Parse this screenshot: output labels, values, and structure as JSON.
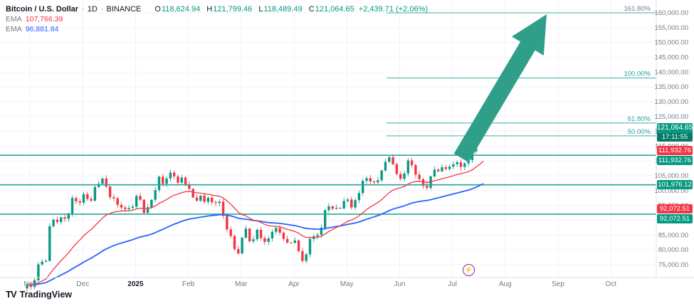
{
  "header": {
    "symbol": "Bitcoin / U.S. Dollar",
    "sep": "·",
    "timeframe": "1D",
    "exchange": "BINANCE",
    "ohlc": {
      "o_label": "O",
      "o": "118,624.94",
      "h_label": "H",
      "h": "121,799.46",
      "l_label": "L",
      "l": "118,489.49",
      "c_label": "C",
      "c": "121,064.65",
      "change": "+2,439.71 (+2.06%)"
    },
    "indicators": [
      {
        "label": "EMA",
        "value": "107,766.39",
        "color": "#f23645"
      },
      {
        "label": "EMA",
        "value": "96,881.84",
        "color": "#2962ff"
      }
    ]
  },
  "price_axis": {
    "labels": [
      "160,000.00",
      "155,000.00",
      "150,000.00",
      "145,000.00",
      "140,000.00",
      "135,000.00",
      "130,000.00",
      "125,000.00",
      "120,000.00",
      "115,000.00",
      "110,000.00",
      "105,000.00",
      "100,000.00",
      "95,000.00",
      "90,000.00",
      "85,000.00",
      "80,000.00",
      "75,000.00"
    ]
  },
  "time_axis": {
    "labels": [
      "Nov",
      "Dec",
      "2025",
      "Feb",
      "Mar",
      "Apr",
      "May",
      "Jun",
      "Jul",
      "Aug",
      "Sep",
      "Oct"
    ]
  },
  "current_price": {
    "value": "121,064.65",
    "countdown": "17:11:55",
    "raw": 121064.65,
    "color": "#089981"
  },
  "sr_levels": [
    {
      "display": "111,932.76",
      "price": 111932.76,
      "color": "#26a69a",
      "badges": [
        "red",
        "green"
      ]
    },
    {
      "display": "101,976.12",
      "price": 101976.12,
      "color": "#26a69a",
      "badges": [
        "green"
      ]
    },
    {
      "display": "92,072.51",
      "price": 92072.51,
      "color": "#26a69a",
      "badges": [
        "red",
        "green"
      ]
    }
  ],
  "fib_levels": [
    {
      "pct": "161.80%",
      "price": 160000,
      "line_color": "#26a69a",
      "label_color": "#787b86"
    },
    {
      "pct": "100.00%",
      "price": 138000,
      "line_color": "#26a69a",
      "label_color": "#26a69a"
    },
    {
      "pct": "61.80%",
      "price": 122800,
      "line_color": "#26a69a",
      "label_color": "#26a69a"
    },
    {
      "pct": "50.00%",
      "price": 118500,
      "line_color": "#26a69a",
      "label_color": "#26a69a"
    }
  ],
  "annotations": {
    "arrow": {
      "type": "arrow-up-right",
      "color": "#2f9f8a"
    }
  },
  "event_icon": {
    "glyph": "⚡"
  },
  "logo": {
    "mark": "TV",
    "text": "TradingView"
  },
  "chart_data": {
    "type": "candlestick",
    "title": "Bitcoin / U.S. Dollar",
    "interval": "1D",
    "exchange": "BINANCE",
    "ylim": [
      75000,
      160000
    ],
    "x_tick_labels": [
      "Nov",
      "Dec",
      "2025",
      "Feb",
      "Mar",
      "Apr",
      "May",
      "Jun",
      "Jul",
      "Aug",
      "Sep",
      "Oct"
    ],
    "last_candle": {
      "open": 118624.94,
      "high": 121799.46,
      "low": 118489.49,
      "close": 121064.65
    },
    "up_color": "#089981",
    "down_color": "#f23645",
    "first_open": 67000,
    "closes": [
      68200,
      67500,
      69800,
      75100,
      76000,
      76300,
      88000,
      90200,
      89400,
      91000,
      90500,
      92300,
      97500,
      96400,
      95900,
      98800,
      97200,
      96600,
      101200,
      102300,
      104100,
      101400,
      97800,
      97400,
      95200,
      94300,
      93800,
      94200,
      94600,
      98200,
      96900,
      92500,
      94400,
      96900,
      100200,
      104700,
      102300,
      104100,
      106100,
      104800,
      102700,
      104400,
      102100,
      100600,
      97700,
      96600,
      98300,
      96200,
      97600,
      96100,
      95800,
      96300,
      91500,
      86900,
      84700,
      80300,
      78800,
      84100,
      87200,
      82900,
      83600,
      86800,
      84000,
      82700,
      83900,
      86100,
      87400,
      85800,
      83700,
      82500,
      82400,
      83200,
      79600,
      76300,
      78500,
      83700,
      84600,
      85100,
      87500,
      93400,
      94700,
      93900,
      94200,
      94000,
      96500,
      97000,
      94300,
      96800,
      99200,
      103300,
      104200,
      103100,
      102800,
      103500,
      106800,
      109700,
      111300,
      108900,
      105600,
      104000,
      105800,
      110200,
      108600,
      105400,
      103900,
      101600,
      100900,
      104800,
      107100,
      106500,
      107900,
      107300,
      108100,
      108900,
      109600,
      108000,
      109200,
      110300,
      113200,
      116800,
      118600,
      121065
    ],
    "ema_fast_display": "107,766.39",
    "ema_slow_display": "96,881.84"
  }
}
